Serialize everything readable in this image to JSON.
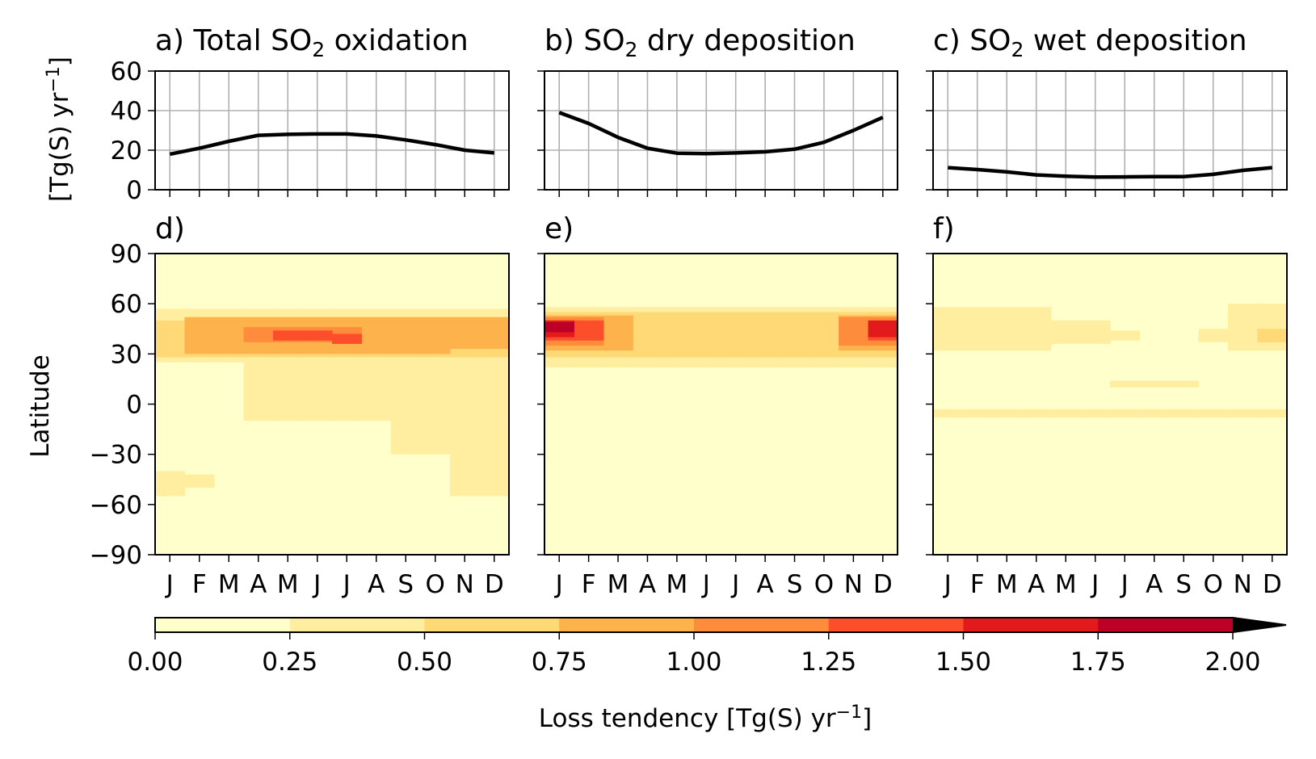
{
  "chart_data": [
    {
      "type": "line",
      "panel": "a",
      "title_prefix": "a) Total SO",
      "title_sub": "2",
      "title_suffix": " oxidation",
      "ylabel": "[Tg(S) yr",
      "ylabel_sup": "−1",
      "ylabel_end": "]",
      "ylim": [
        0,
        60
      ],
      "yticks": [
        "0",
        "20",
        "40",
        "60"
      ],
      "x": [
        "J",
        "F",
        "M",
        "A",
        "M",
        "J",
        "J",
        "A",
        "S",
        "O",
        "N",
        "D"
      ],
      "grid": true,
      "series": [
        {
          "values": [
            18,
            21,
            24.5,
            27.5,
            28,
            28.2,
            28.2,
            27.2,
            25.2,
            22.8,
            20,
            18.6
          ]
        }
      ]
    },
    {
      "type": "line",
      "panel": "b",
      "title_prefix": "b) SO",
      "title_sub": "2",
      "title_suffix": " dry deposition",
      "ylim": [
        0,
        60
      ],
      "x": [
        "J",
        "F",
        "M",
        "A",
        "M",
        "J",
        "J",
        "A",
        "S",
        "O",
        "N",
        "D"
      ],
      "grid": true,
      "series": [
        {
          "values": [
            39,
            33.5,
            26.5,
            21,
            18.5,
            18.3,
            18.6,
            19.2,
            20.5,
            24,
            30,
            36.6
          ]
        }
      ]
    },
    {
      "type": "line",
      "panel": "c",
      "title_prefix": "c) SO",
      "title_sub": "2",
      "title_suffix": " wet deposition",
      "ylim": [
        0,
        60
      ],
      "x": [
        "J",
        "F",
        "M",
        "A",
        "M",
        "J",
        "J",
        "A",
        "S",
        "O",
        "N",
        "D"
      ],
      "grid": true,
      "series": [
        {
          "values": [
            11.2,
            10.2,
            9,
            7.5,
            6.8,
            6.4,
            6.5,
            6.6,
            6.6,
            7.8,
            9.8,
            11.2
          ]
        }
      ]
    },
    {
      "type": "heatmap",
      "panel": "d",
      "title": "d)",
      "ylabel": "Latitude",
      "ylim": [
        -90,
        90
      ],
      "yticks": [
        "90",
        "60",
        "30",
        "0",
        "−30",
        "−60",
        "−90"
      ],
      "x": [
        "J",
        "F",
        "M",
        "A",
        "M",
        "J",
        "J",
        "A",
        "S",
        "O",
        "N",
        "D"
      ],
      "bands": [
        {
          "lat": [
            -90,
            90
          ],
          "level": 0,
          "months": [
            1,
            2,
            3,
            4,
            5,
            6,
            7,
            8,
            9,
            10,
            11,
            12
          ]
        },
        {
          "lat": [
            25,
            57
          ],
          "level": 1,
          "months": [
            1,
            2,
            3,
            4,
            5,
            6,
            7,
            8,
            9,
            10,
            11,
            12
          ]
        },
        {
          "lat": [
            -10,
            25
          ],
          "level": 1,
          "months": [
            4,
            5,
            6,
            7,
            8,
            9,
            10,
            11,
            12
          ]
        },
        {
          "lat": [
            -30,
            -10
          ],
          "level": 1,
          "months": [
            9,
            10,
            11,
            12
          ]
        },
        {
          "lat": [
            -55,
            -40
          ],
          "level": 1,
          "months": [
            1
          ]
        },
        {
          "lat": [
            -50,
            -42
          ],
          "level": 1,
          "months": [
            2
          ]
        },
        {
          "lat": [
            -55,
            -30
          ],
          "level": 1,
          "months": [
            11,
            12
          ]
        },
        {
          "lat": [
            28,
            50
          ],
          "level": 2,
          "months": [
            1,
            2,
            3,
            4,
            5,
            6,
            7,
            8,
            9,
            10,
            11,
            12
          ]
        },
        {
          "lat": [
            30,
            52
          ],
          "level": 3,
          "months": [
            2,
            3,
            4,
            5,
            6,
            7,
            8,
            9,
            10
          ]
        },
        {
          "lat": [
            33,
            52
          ],
          "level": 3,
          "months": [
            11,
            12
          ]
        },
        {
          "lat": [
            37,
            46
          ],
          "level": 4,
          "months": [
            4,
            5,
            6,
            7
          ]
        },
        {
          "lat": [
            38,
            44
          ],
          "level": 5,
          "months": [
            5,
            6
          ]
        },
        {
          "lat": [
            36,
            42
          ],
          "level": 5,
          "months": [
            7
          ]
        }
      ]
    },
    {
      "type": "heatmap",
      "panel": "e",
      "title": "e)",
      "ylim": [
        -90,
        90
      ],
      "x": [
        "J",
        "F",
        "M",
        "A",
        "M",
        "J",
        "J",
        "A",
        "S",
        "O",
        "N",
        "D"
      ],
      "bands": [
        {
          "lat": [
            -90,
            90
          ],
          "level": 0,
          "months": [
            1,
            2,
            3,
            4,
            5,
            6,
            7,
            8,
            9,
            10,
            11,
            12
          ]
        },
        {
          "lat": [
            22,
            58
          ],
          "level": 1,
          "months": [
            1,
            2,
            3,
            4,
            5,
            6,
            7,
            8,
            9,
            10,
            11,
            12
          ]
        },
        {
          "lat": [
            28,
            55
          ],
          "level": 2,
          "months": [
            1,
            2,
            3,
            4,
            5,
            6,
            7,
            8,
            9,
            10,
            11,
            12
          ]
        },
        {
          "lat": [
            32,
            53
          ],
          "level": 3,
          "months": [
            1,
            2,
            3,
            11,
            12
          ]
        },
        {
          "lat": [
            35,
            52
          ],
          "level": 4,
          "months": [
            1,
            2,
            11,
            12
          ]
        },
        {
          "lat": [
            38,
            50
          ],
          "level": 5,
          "months": [
            1,
            2,
            12
          ]
        },
        {
          "lat": [
            40,
            50
          ],
          "level": 6,
          "months": [
            1,
            12
          ]
        },
        {
          "lat": [
            43,
            49
          ],
          "level": 7,
          "months": [
            1
          ]
        }
      ]
    },
    {
      "type": "heatmap",
      "panel": "f",
      "title": "f)",
      "ylim": [
        -90,
        90
      ],
      "x": [
        "J",
        "F",
        "M",
        "A",
        "M",
        "J",
        "J",
        "A",
        "S",
        "O",
        "N",
        "D"
      ],
      "bands": [
        {
          "lat": [
            -90,
            90
          ],
          "level": 0,
          "months": [
            1,
            2,
            3,
            4,
            5,
            6,
            7,
            8,
            9,
            10,
            11,
            12
          ]
        },
        {
          "lat": [
            32,
            58
          ],
          "level": 1,
          "months": [
            1,
            2,
            3,
            4
          ]
        },
        {
          "lat": [
            36,
            50
          ],
          "level": 1,
          "months": [
            5,
            6
          ]
        },
        {
          "lat": [
            38,
            44
          ],
          "level": 1,
          "months": [
            7
          ]
        },
        {
          "lat": [
            -8,
            -3
          ],
          "level": 1,
          "months": [
            1,
            2,
            3,
            4,
            5,
            6,
            7,
            8,
            9,
            10,
            11,
            12
          ]
        },
        {
          "lat": [
            10,
            14
          ],
          "level": 1,
          "months": [
            7,
            8,
            9
          ]
        },
        {
          "lat": [
            32,
            60
          ],
          "level": 1,
          "months": [
            11,
            12
          ]
        },
        {
          "lat": [
            37,
            45
          ],
          "level": 1,
          "months": [
            10
          ]
        },
        {
          "lat": [
            37,
            45
          ],
          "level": 2,
          "months": [
            12
          ]
        }
      ]
    }
  ],
  "colorbar": {
    "label": "Loss tendency [Tg(S) yr",
    "label_sup": "−1",
    "label_end": "]",
    "ticks": [
      "0.00",
      "0.25",
      "0.50",
      "0.75",
      "1.00",
      "1.25",
      "1.50",
      "1.75",
      "2.00"
    ],
    "extend": "max",
    "colors": [
      "#ffffcc",
      "#ffeda0",
      "#fed976",
      "#feb24c",
      "#fd8d3c",
      "#fc4e2a",
      "#e31a1c",
      "#bd0026",
      "#800026"
    ]
  }
}
